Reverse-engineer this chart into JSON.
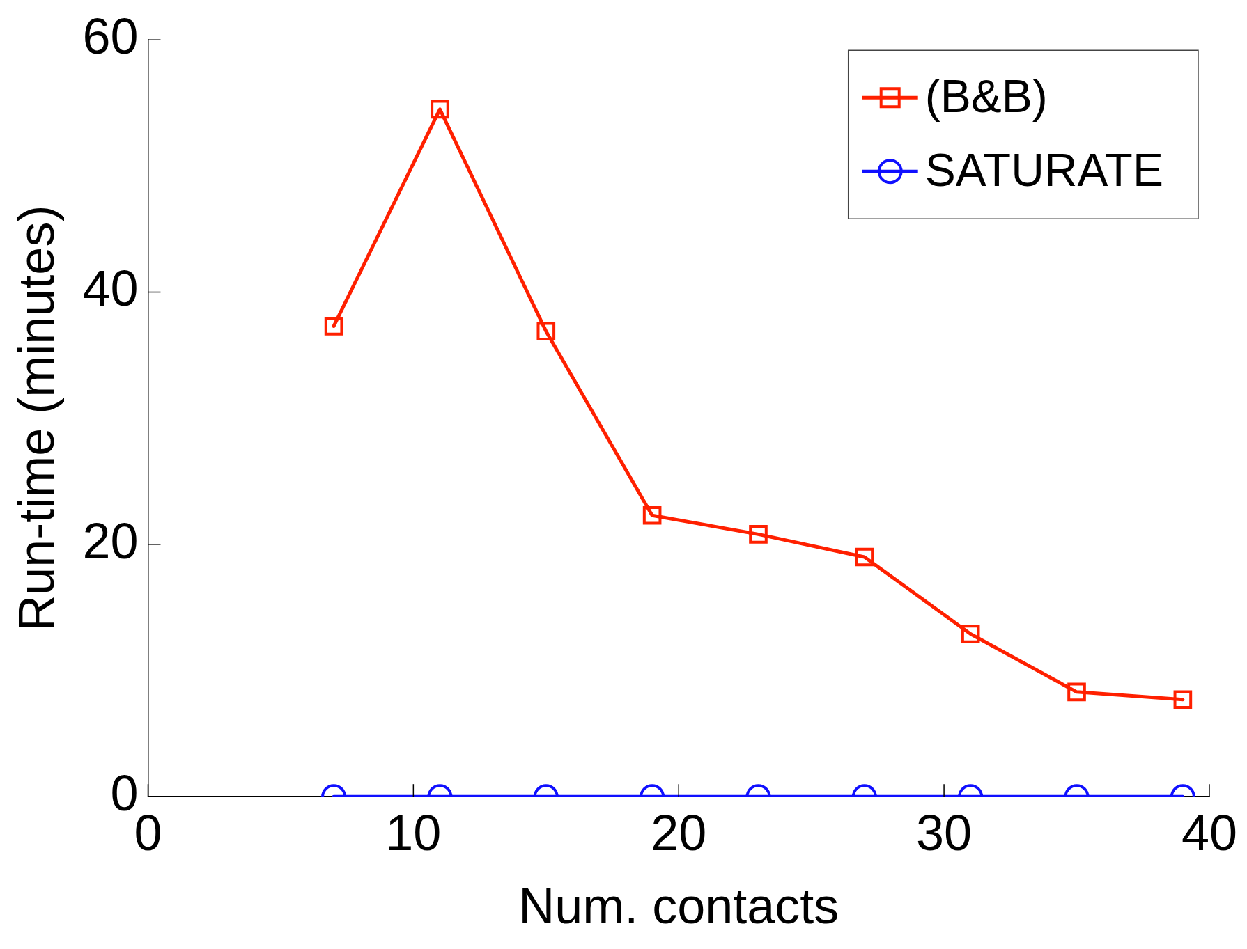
{
  "chart_data": {
    "type": "line",
    "xlabel": "Num. contacts",
    "ylabel": "Run-time (minutes)",
    "x": [
      7,
      11,
      15,
      19,
      23,
      27,
      31,
      35,
      39
    ],
    "series": [
      {
        "name": "(B&B)",
        "color": "#ff2000",
        "marker": "square",
        "values": [
          37.3,
          54.5,
          36.9,
          22.3,
          20.8,
          19.0,
          12.9,
          8.3,
          7.7
        ]
      },
      {
        "name": "SATURATE",
        "color": "#1010ff",
        "marker": "circle",
        "values": [
          0,
          0,
          0,
          0,
          0,
          0,
          0,
          0,
          0
        ]
      }
    ],
    "xlim": [
      0,
      40
    ],
    "xticks": [
      0,
      10,
      20,
      30,
      40
    ],
    "ylim": [
      0,
      60
    ],
    "yticks": [
      0,
      20,
      40,
      60
    ],
    "grid": false,
    "legend": "top right",
    "line_style": "solid"
  }
}
